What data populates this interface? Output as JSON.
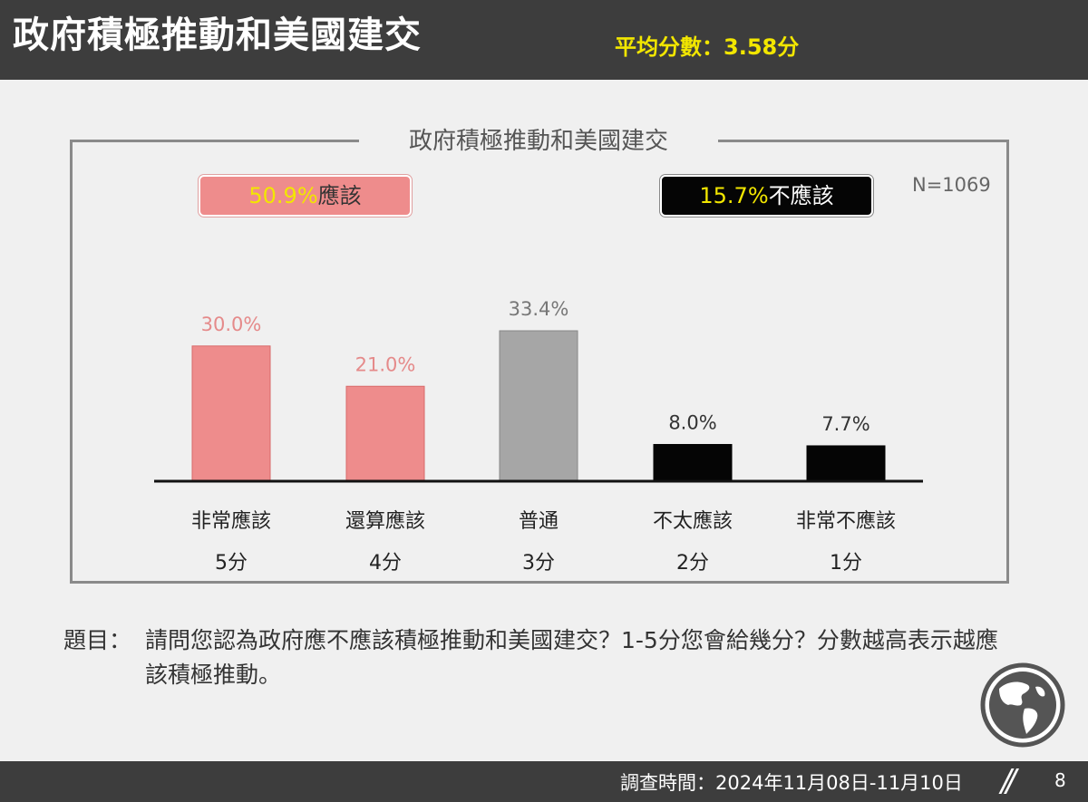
{
  "header": {
    "title": "政府積極推動和美國建交",
    "average": "平均分數：3.58分"
  },
  "chart_frame": {
    "title": "政府積極推動和美國建交",
    "sample_size": "N=1069"
  },
  "summary_boxes": {
    "positive": {
      "value": "50.9%",
      "label": "應該"
    },
    "negative": {
      "value": "15.7%",
      "label": "不應該"
    }
  },
  "chart_data": {
    "type": "bar",
    "title": "政府積極推動和美國建交",
    "categories": [
      "非常應該",
      "還算應該",
      "普通",
      "不太應該",
      "非常不應該"
    ],
    "scores": [
      "5分",
      "4分",
      "3分",
      "2分",
      "1分"
    ],
    "values": [
      30.0,
      21.0,
      33.4,
      8.0,
      7.7
    ],
    "value_labels": [
      "30.0%",
      "21.0%",
      "33.4%",
      "8.0%",
      "7.7%"
    ],
    "bar_colors": [
      "#ee8c8c",
      "#ee8c8c",
      "#a6a6a6",
      "#050505",
      "#050505"
    ],
    "label_colors": [
      "#e58a8a",
      "#e58a8a",
      "#777777",
      "#333333",
      "#333333"
    ],
    "ylim": [
      0,
      33.4
    ],
    "grid": false
  },
  "question": {
    "label": "題目：",
    "text": "請問您認為政府應不應該積極推動和美國建交？1-5分您會給幾分？分數越高表示越應該積極推動。"
  },
  "footer": {
    "survey_date": "調查時間：2024年11月08日-11月10日",
    "page_number": "8"
  },
  "icons": {
    "globe": "globe-icon"
  }
}
